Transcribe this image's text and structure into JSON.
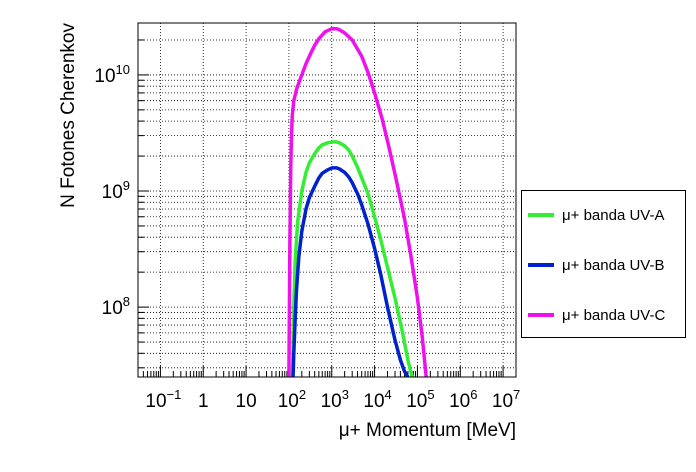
{
  "chart_data": {
    "type": "line",
    "title": "",
    "xlabel": "μ+ Momentum [MeV]",
    "ylabel": "N Fotones Cherenkov",
    "xscale": "log",
    "yscale": "log",
    "xlim": [
      0.03,
      20000000
    ],
    "ylim": [
      25000000,
      28000000000
    ],
    "grid": true,
    "legend_position": "right",
    "x_tick_labels": [
      {
        "base": "10",
        "exp": "−1",
        "value": 0.1
      },
      {
        "base": "1",
        "exp": "",
        "value": 1
      },
      {
        "base": "10",
        "exp": "",
        "value": 10
      },
      {
        "base": "10",
        "exp": "2",
        "value": 100
      },
      {
        "base": "10",
        "exp": "3",
        "value": 1000
      },
      {
        "base": "10",
        "exp": "4",
        "value": 10000
      },
      {
        "base": "10",
        "exp": "5",
        "value": 100000
      },
      {
        "base": "10",
        "exp": "6",
        "value": 1000000
      },
      {
        "base": "10",
        "exp": "7",
        "value": 10000000
      }
    ],
    "y_tick_labels": [
      {
        "base": "10",
        "exp": "8",
        "value": 100000000
      },
      {
        "base": "10",
        "exp": "9",
        "value": 1000000000
      },
      {
        "base": "10",
        "exp": "10",
        "value": 10000000000
      }
    ],
    "series": [
      {
        "name": "μ+ banda UV-A",
        "color": "#33ee33",
        "x": [
          120,
          125,
          130,
          140,
          160,
          200,
          250,
          300,
          400,
          500,
          600,
          800,
          1000,
          1300,
          1500,
          2000,
          2500,
          3000,
          4000,
          5000,
          7000,
          10000,
          14000,
          20000,
          30000,
          45000,
          60000,
          75000
        ],
        "y": [
          25000000,
          45000000,
          100000000,
          250000000,
          550000000,
          1000000000,
          1450000000,
          1750000000,
          2100000000,
          2350000000,
          2500000000,
          2600000000,
          2650000000,
          2650000000,
          2600000000,
          2450000000,
          2250000000,
          2000000000,
          1600000000,
          1300000000,
          950000000,
          600000000,
          380000000,
          220000000,
          120000000,
          60000000,
          35000000,
          25000000
        ]
      },
      {
        "name": "μ+ banda UV-B",
        "color": "#0022cc",
        "x": [
          125,
          130,
          140,
          150,
          170,
          200,
          250,
          300,
          400,
          500,
          600,
          800,
          1000,
          1300,
          1500,
          2000,
          2500,
          3000,
          4000,
          5000,
          7000,
          10000,
          14000,
          20000,
          30000,
          40000,
          50000,
          60000
        ],
        "y": [
          25000000,
          40000000,
          80000000,
          140000000,
          270000000,
          450000000,
          700000000,
          880000000,
          1100000000,
          1300000000,
          1420000000,
          1520000000,
          1580000000,
          1580000000,
          1550000000,
          1450000000,
          1320000000,
          1180000000,
          950000000,
          760000000,
          520000000,
          320000000,
          190000000,
          100000000,
          52000000,
          35000000,
          28000000,
          25000000
        ]
      },
      {
        "name": "μ+ banda UV-C",
        "color": "#ee11ee",
        "x": [
          100,
          105,
          110,
          115,
          120,
          130,
          150,
          180,
          200,
          250,
          300,
          400,
          500,
          700,
          1000,
          1300,
          1500,
          2000,
          3000,
          5000,
          7000,
          10000,
          15000,
          20000,
          30000,
          50000,
          70000,
          100000,
          130000,
          160000
        ],
        "y": [
          25000000,
          300000000,
          1500000000,
          3000000000,
          4500000000,
          6000000000,
          7500000000,
          9000000000,
          10000000000,
          12500000000,
          14500000000,
          18000000000,
          20500000000,
          23500000000,
          25000000000,
          25000000000,
          24500000000,
          23000000000,
          20000000000,
          14500000000,
          10500000000,
          7000000000,
          4200000000,
          2700000000,
          1400000000,
          580000000,
          280000000,
          120000000,
          55000000,
          25000000
        ]
      }
    ]
  }
}
